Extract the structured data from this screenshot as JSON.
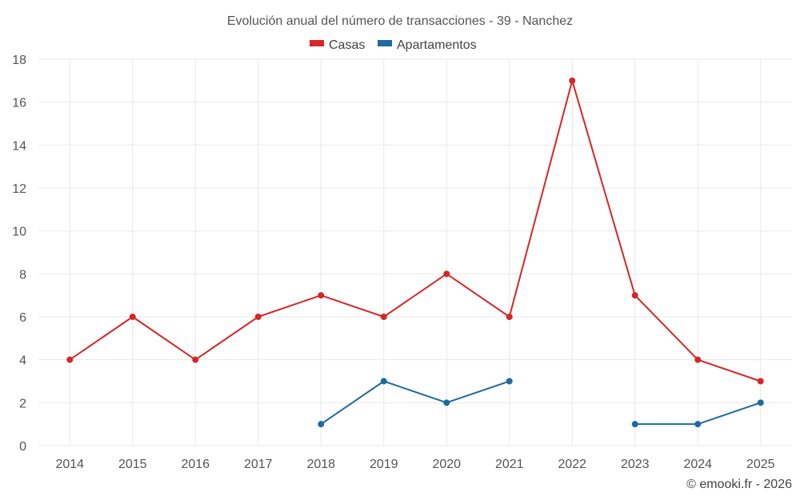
{
  "chart_data": {
    "type": "line",
    "title": "Evolución anual del número de transacciones - 39 - Nanchez",
    "xlabel": "",
    "ylabel": "",
    "x": [
      "2014",
      "2015",
      "2016",
      "2017",
      "2018",
      "2019",
      "2020",
      "2021",
      "2022",
      "2023",
      "2024",
      "2025"
    ],
    "ylim": [
      0,
      18
    ],
    "yticks": [
      0,
      2,
      4,
      6,
      8,
      10,
      12,
      14,
      16,
      18
    ],
    "grid": true,
    "legend": "top-center",
    "series": [
      {
        "name": "Casas",
        "color": "#d62728",
        "values": [
          4,
          6,
          4,
          6,
          7,
          6,
          8,
          6,
          17,
          7,
          4,
          3
        ]
      },
      {
        "name": "Apartamentos",
        "color": "#1f6aa0",
        "values": [
          null,
          null,
          null,
          null,
          1,
          3,
          2,
          3,
          null,
          1,
          1,
          2
        ]
      }
    ]
  },
  "credit": "© emooki.fr - 2026"
}
